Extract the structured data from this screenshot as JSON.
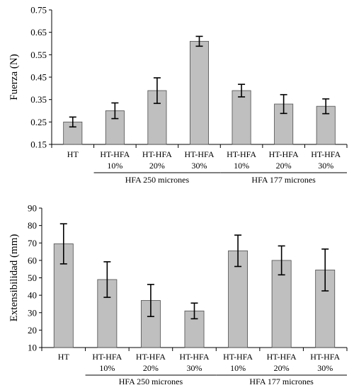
{
  "chart_data": [
    {
      "type": "bar",
      "ylabel": "Fuerza (N)",
      "xlabel": "",
      "ylim": [
        0.15,
        0.75
      ],
      "yticks": [
        "0.15",
        "0.25",
        "0.35",
        "0.45",
        "0.55",
        "0.65",
        "0.75"
      ],
      "categories": [
        [
          "HT"
        ],
        [
          "HT-HFA",
          "10%"
        ],
        [
          "HT-HFA",
          "20%"
        ],
        [
          "HT-HFA",
          "30%"
        ],
        [
          "HT-HFA",
          "10%"
        ],
        [
          "HT-HFA",
          "20%"
        ],
        [
          "HT-HFA",
          "30%"
        ]
      ],
      "values": [
        0.25,
        0.3,
        0.39,
        0.61,
        0.39,
        0.33,
        0.32
      ],
      "errors": [
        0.022,
        0.035,
        0.057,
        0.022,
        0.028,
        0.042,
        0.033
      ],
      "groups": [
        {
          "label": "HFA 250 micrones",
          "from": 1,
          "to": 3
        },
        {
          "label": "HFA 177 micrones",
          "from": 4,
          "to": 6
        }
      ],
      "grid": false
    },
    {
      "type": "bar",
      "ylabel": "Extensibilidad (mm)",
      "xlabel": "",
      "ylim": [
        10,
        90
      ],
      "yticks": [
        "10",
        "20",
        "30",
        "40",
        "50",
        "60",
        "70",
        "80",
        "90"
      ],
      "categories": [
        [
          "HT"
        ],
        [
          "HT-HFA",
          "10%"
        ],
        [
          "HT-HFA",
          "20%"
        ],
        [
          "HT-HFA",
          "30%"
        ],
        [
          "HT-HFA",
          "10%"
        ],
        [
          "HT-HFA",
          "20%"
        ],
        [
          "HT-HFA",
          "30%"
        ]
      ],
      "values": [
        69.5,
        49,
        37,
        31,
        65.5,
        60,
        54.5
      ],
      "errors": [
        11.5,
        10.2,
        9.2,
        4.5,
        9,
        8.3,
        12
      ],
      "groups": [
        {
          "label": "HFA 250 micrones",
          "from": 1,
          "to": 3
        },
        {
          "label": "HFA 177 micrones",
          "from": 4,
          "to": 6
        }
      ],
      "grid": false
    }
  ]
}
